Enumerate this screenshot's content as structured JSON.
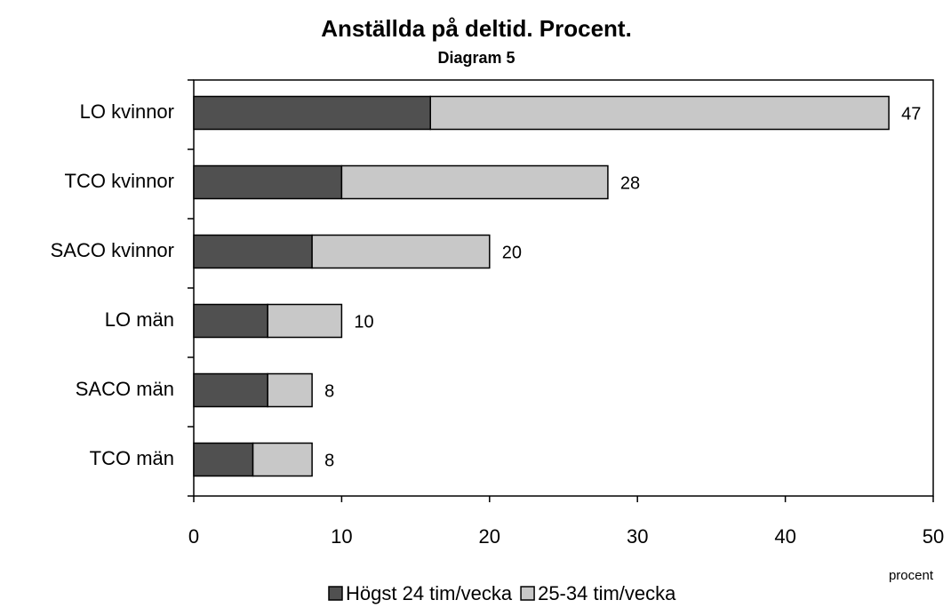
{
  "chart_data": {
    "type": "bar",
    "orientation": "horizontal",
    "stacked": true,
    "title": "Anställda på deltid. Procent.",
    "subtitle": "Diagram 5",
    "x_label": "procent",
    "categories": [
      "LO kvinnor",
      "TCO kvinnor",
      "SACO kvinnor",
      "LO män",
      "SACO män",
      "TCO män"
    ],
    "series": [
      {
        "name": "Högst 24 tim/vecka",
        "color": "#505050",
        "values": [
          16,
          10,
          8,
          5,
          5,
          4
        ]
      },
      {
        "name": "25-34 tim/vecka",
        "color": "#c8c8c8",
        "values": [
          31,
          18,
          12,
          5,
          3,
          4
        ]
      }
    ],
    "totals": [
      47,
      28,
      20,
      10,
      8,
      8
    ],
    "xlim": [
      0,
      50
    ],
    "xticks": [
      0,
      10,
      20,
      30,
      40,
      50
    ],
    "grid": false,
    "legend": "bottom"
  }
}
